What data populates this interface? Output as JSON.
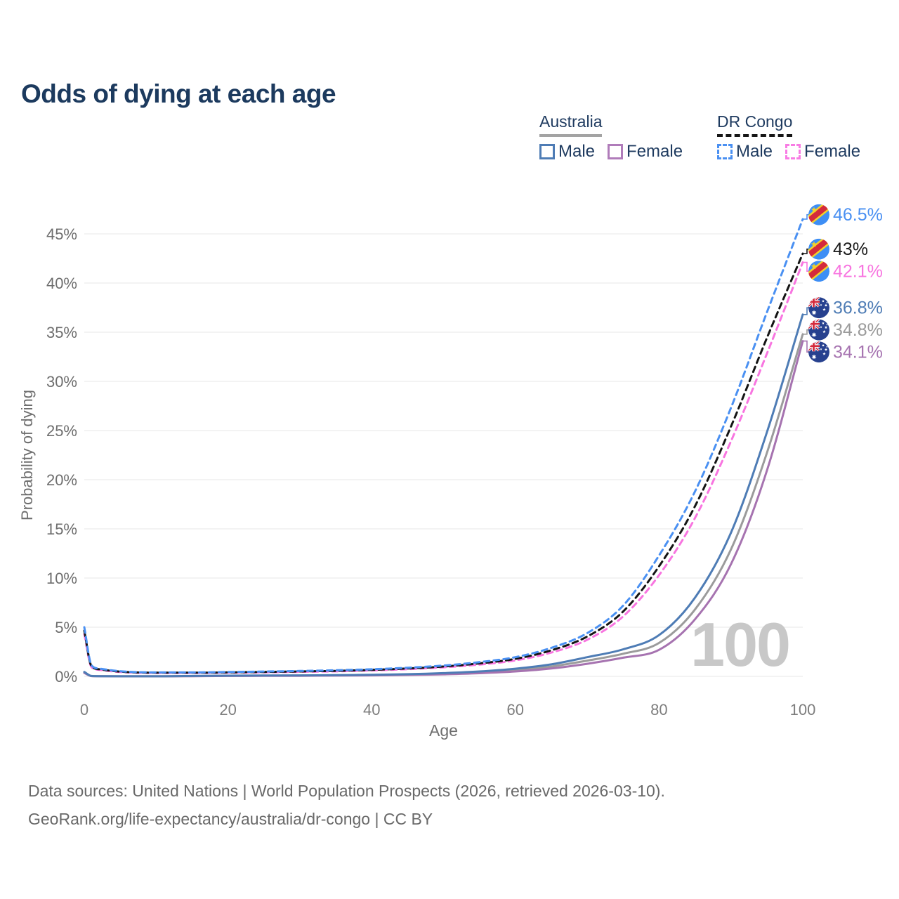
{
  "header": {
    "title": "Odds of dying at each age"
  },
  "legend": {
    "groups": [
      {
        "label": "Australia",
        "line_style": "solid",
        "underline_color": "#a3a3a3",
        "items": [
          {
            "label": "Male",
            "color": "#4e7cb5"
          },
          {
            "label": "Female",
            "color": "#b07cba"
          }
        ]
      },
      {
        "label": "DR Congo",
        "line_style": "dashed",
        "underline_color": "#161616",
        "items": [
          {
            "label": "Male",
            "color": "#4a90f2"
          },
          {
            "label": "Female",
            "color": "#f87ce4"
          }
        ]
      }
    ]
  },
  "chart_data": {
    "type": "line",
    "title": "Odds of dying at each age",
    "xlabel": "Age",
    "ylabel": "Probability of dying",
    "xlim": [
      0,
      100
    ],
    "ylim_pct": [
      0,
      47.5
    ],
    "x_ticks": [
      0,
      20,
      40,
      60,
      80,
      100
    ],
    "y_ticks_pct": [
      0,
      5,
      10,
      15,
      20,
      25,
      30,
      35,
      40,
      45
    ],
    "y_tick_suffix": "%",
    "grid": "horizontal",
    "legend_position": "top-right",
    "age_watermark": "100",
    "ages": [
      0,
      1,
      2,
      5,
      10,
      15,
      20,
      25,
      30,
      35,
      40,
      45,
      50,
      55,
      60,
      65,
      70,
      75,
      80,
      85,
      90,
      95,
      100
    ],
    "series": [
      {
        "name": "Australia both sexes",
        "country": "australia",
        "sex": "both",
        "color": "#9b9b9b",
        "dash": false,
        "end_label": "34.8%",
        "values_pct": [
          0.4,
          0.035,
          0.02,
          0.01,
          0.01,
          0.03,
          0.05,
          0.07,
          0.08,
          0.1,
          0.13,
          0.18,
          0.27,
          0.41,
          0.63,
          1.0,
          1.6,
          2.3,
          3.4,
          6.8,
          12.9,
          22.7,
          34.8
        ]
      },
      {
        "name": "Australia female",
        "country": "australia",
        "sex": "female",
        "color": "#a673b0",
        "dash": false,
        "end_label": "34.1%",
        "values_pct": [
          0.35,
          0.03,
          0.015,
          0.01,
          0.01,
          0.02,
          0.04,
          0.05,
          0.06,
          0.08,
          0.1,
          0.14,
          0.21,
          0.32,
          0.5,
          0.8,
          1.28,
          1.9,
          2.7,
          5.8,
          11.4,
          20.9,
          34.1
        ]
      },
      {
        "name": "Australia male",
        "country": "australia",
        "sex": "male",
        "color": "#4e7cb5",
        "dash": false,
        "end_label": "36.8%",
        "values_pct": [
          0.45,
          0.04,
          0.02,
          0.01,
          0.01,
          0.04,
          0.07,
          0.09,
          0.1,
          0.12,
          0.16,
          0.22,
          0.33,
          0.5,
          0.78,
          1.22,
          1.95,
          2.75,
          4.2,
          8.0,
          14.6,
          24.8,
          36.8
        ]
      },
      {
        "name": "DR Congo female",
        "country": "dr-congo",
        "sex": "female",
        "color": "#f875e0",
        "dash": true,
        "end_label": "42.1%",
        "values_pct": [
          4.3,
          0.95,
          0.67,
          0.44,
          0.34,
          0.34,
          0.37,
          0.41,
          0.46,
          0.51,
          0.6,
          0.73,
          0.92,
          1.2,
          1.62,
          2.42,
          3.72,
          6.1,
          10.3,
          16.1,
          23.9,
          32.8,
          42.1
        ]
      },
      {
        "name": "DR Congo both sexes",
        "country": "dr-congo",
        "sex": "both",
        "color": "#141414",
        "dash": true,
        "end_label": "43%",
        "values_pct": [
          4.65,
          1.05,
          0.73,
          0.48,
          0.37,
          0.37,
          0.4,
          0.45,
          0.5,
          0.56,
          0.66,
          0.8,
          1.0,
          1.32,
          1.78,
          2.65,
          4.05,
          6.6,
          11.2,
          17.3,
          25.4,
          34.4,
          43.0
        ]
      },
      {
        "name": "DR Congo male",
        "country": "dr-congo",
        "sex": "male",
        "color": "#4a90f2",
        "dash": true,
        "end_label": "46.5%",
        "values_pct": [
          5.0,
          1.15,
          0.8,
          0.52,
          0.4,
          0.4,
          0.44,
          0.49,
          0.55,
          0.62,
          0.72,
          0.88,
          1.1,
          1.45,
          1.95,
          2.9,
          4.4,
          7.2,
          12.3,
          18.8,
          27.3,
          37.0,
          46.5
        ]
      }
    ]
  },
  "footer": {
    "line1": "Data sources: United Nations | World Population Prospects (2026, retrieved 2026-03-10).",
    "line2": "GeoRank.org/life-expectancy/australia/dr-congo | CC BY"
  }
}
